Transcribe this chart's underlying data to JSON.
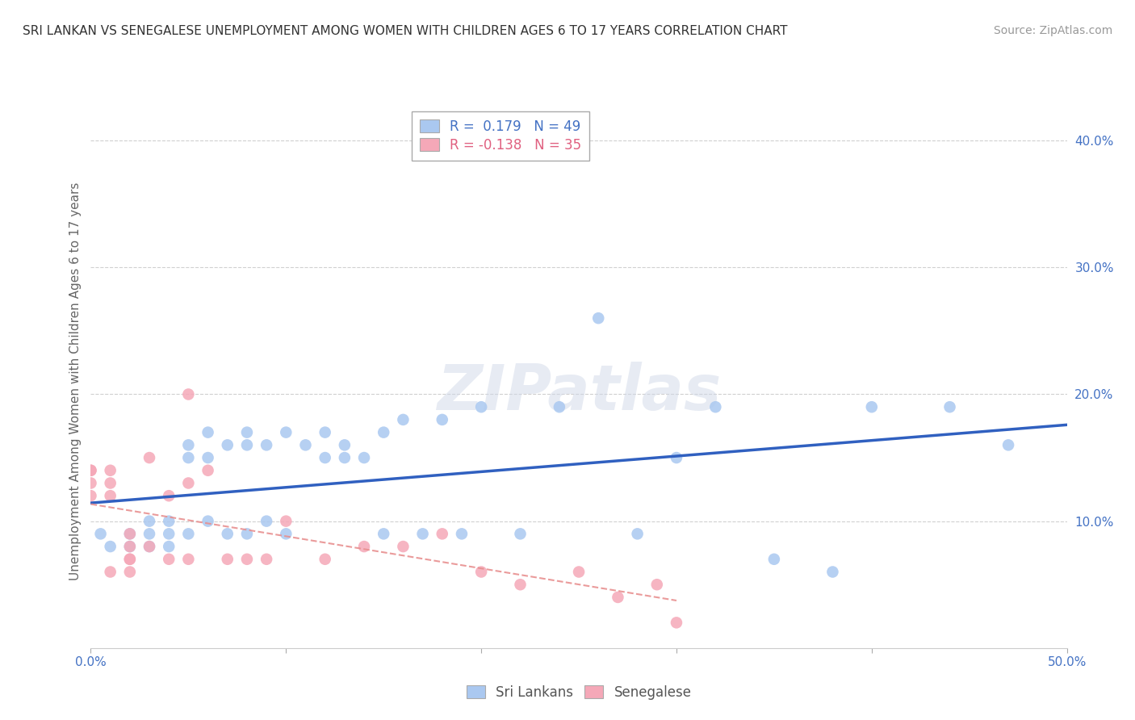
{
  "title": "SRI LANKAN VS SENEGALESE UNEMPLOYMENT AMONG WOMEN WITH CHILDREN AGES 6 TO 17 YEARS CORRELATION CHART",
  "source": "Source: ZipAtlas.com",
  "ylabel": "Unemployment Among Women with Children Ages 6 to 17 years",
  "xlim": [
    0.0,
    0.5
  ],
  "ylim": [
    0.0,
    0.42
  ],
  "yticks": [
    0.1,
    0.2,
    0.3,
    0.4
  ],
  "ytick_labels": [
    "10.0%",
    "20.0%",
    "30.0%",
    "40.0%"
  ],
  "xtick_left_label": "0.0%",
  "xtick_right_label": "50.0%",
  "grid_color": "#d0d0d0",
  "background_color": "#ffffff",
  "sri_lankan_color": "#aac8f0",
  "senegalese_color": "#f5a8b8",
  "sri_lankan_line_color": "#3060c0",
  "senegalese_line_color": "#e89090",
  "R_sri": 0.179,
  "N_sri": 49,
  "R_sen": -0.138,
  "N_sen": 35,
  "sri_lankan_x": [
    0.005,
    0.01,
    0.02,
    0.02,
    0.03,
    0.03,
    0.03,
    0.04,
    0.04,
    0.04,
    0.05,
    0.05,
    0.05,
    0.06,
    0.06,
    0.06,
    0.07,
    0.07,
    0.08,
    0.08,
    0.08,
    0.09,
    0.09,
    0.1,
    0.1,
    0.11,
    0.12,
    0.12,
    0.13,
    0.13,
    0.14,
    0.15,
    0.15,
    0.16,
    0.17,
    0.18,
    0.19,
    0.2,
    0.22,
    0.24,
    0.26,
    0.28,
    0.3,
    0.32,
    0.35,
    0.38,
    0.4,
    0.44,
    0.47
  ],
  "sri_lankan_y": [
    0.09,
    0.08,
    0.09,
    0.08,
    0.1,
    0.09,
    0.08,
    0.1,
    0.09,
    0.08,
    0.16,
    0.15,
    0.09,
    0.17,
    0.15,
    0.1,
    0.16,
    0.09,
    0.17,
    0.16,
    0.09,
    0.16,
    0.1,
    0.17,
    0.09,
    0.16,
    0.17,
    0.15,
    0.16,
    0.15,
    0.15,
    0.17,
    0.09,
    0.18,
    0.09,
    0.18,
    0.09,
    0.19,
    0.09,
    0.19,
    0.26,
    0.09,
    0.15,
    0.19,
    0.07,
    0.06,
    0.19,
    0.19,
    0.16
  ],
  "senegalese_x": [
    0.0,
    0.0,
    0.0,
    0.0,
    0.01,
    0.01,
    0.01,
    0.01,
    0.02,
    0.02,
    0.02,
    0.02,
    0.02,
    0.03,
    0.03,
    0.04,
    0.04,
    0.05,
    0.05,
    0.05,
    0.06,
    0.07,
    0.08,
    0.09,
    0.1,
    0.12,
    0.14,
    0.16,
    0.18,
    0.2,
    0.22,
    0.25,
    0.27,
    0.29,
    0.3
  ],
  "senegalese_y": [
    0.14,
    0.14,
    0.13,
    0.12,
    0.13,
    0.14,
    0.12,
    0.06,
    0.09,
    0.08,
    0.07,
    0.07,
    0.06,
    0.15,
    0.08,
    0.12,
    0.07,
    0.2,
    0.13,
    0.07,
    0.14,
    0.07,
    0.07,
    0.07,
    0.1,
    0.07,
    0.08,
    0.08,
    0.09,
    0.06,
    0.05,
    0.06,
    0.04,
    0.05,
    0.02
  ]
}
